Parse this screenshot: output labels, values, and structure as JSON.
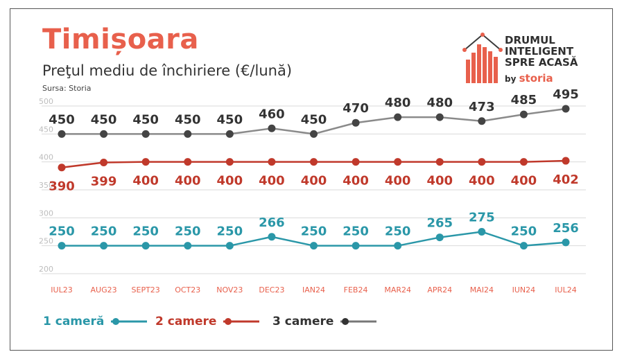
{
  "title": "Timișoara",
  "subtitle": "Preţul mediu de închiriere (€/lună)",
  "source": "Sursa: Storia",
  "logo": {
    "line1": "DRUMUL",
    "line2": "INTELIGENT",
    "line3": "SPRE ACASĂ",
    "by": "by",
    "brand": "storia",
    "icon": "house-bar-chart-icon"
  },
  "colors": {
    "accent": "#e8604c",
    "series1": "#2a97a8",
    "series2": "#c0392b",
    "series3": "#5a5a5a",
    "grid": "#d9d9d9",
    "tick": "#bdbdbd"
  },
  "chart_data": {
    "type": "line",
    "categories": [
      "IUL23",
      "AUG23",
      "SEPT23",
      "OCT23",
      "NOV23",
      "DEC23",
      "IAN24",
      "FEB24",
      "MAR24",
      "APR24",
      "MAI24",
      "IUN24",
      "IUL24"
    ],
    "ylim": [
      200,
      500
    ],
    "yticks": [
      200,
      250,
      300,
      350,
      400,
      450,
      500
    ],
    "grid": true,
    "legend": "bottom-left",
    "series": [
      {
        "name": "1 cameră",
        "values": [
          250,
          250,
          250,
          250,
          250,
          266,
          250,
          250,
          250,
          265,
          275,
          250,
          256
        ],
        "labels": [
          "250",
          "250",
          "250",
          "250",
          "250",
          "266",
          "250",
          "250",
          "250",
          "265",
          "275",
          "250",
          "256"
        ]
      },
      {
        "name": "2 camere",
        "values": [
          390,
          399,
          400,
          400,
          400,
          400,
          400,
          400,
          400,
          400,
          400,
          400,
          402
        ],
        "labels": [
          "390",
          "399",
          "400",
          "400",
          "400",
          "400",
          "400",
          "400",
          "400",
          "400",
          "400",
          "400",
          "402"
        ]
      },
      {
        "name": "3 camere",
        "values": [
          450,
          450,
          450,
          450,
          450,
          460,
          450,
          470,
          480,
          480,
          473,
          485,
          495
        ],
        "labels": [
          "450",
          "450",
          "450",
          "450",
          "450",
          "460",
          "450",
          "470",
          "480",
          "480",
          "473",
          "485",
          "495"
        ]
      }
    ]
  }
}
